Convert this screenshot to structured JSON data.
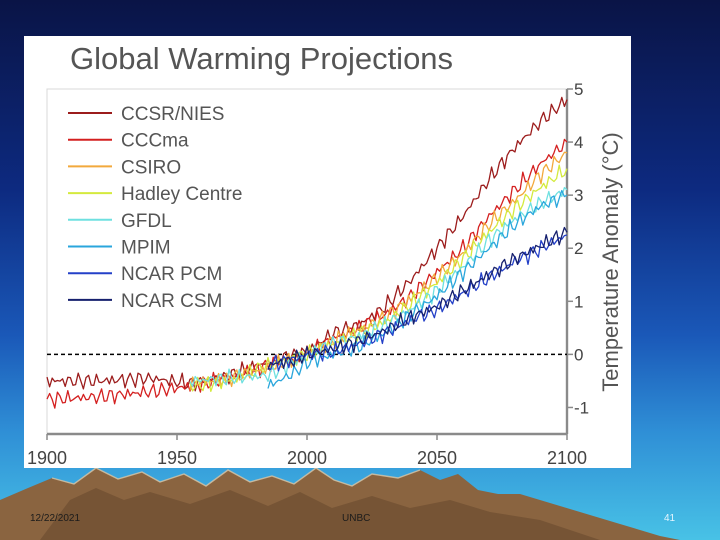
{
  "slide": {
    "date": "12/22/2021",
    "organization": "UNBC",
    "page_number": "41",
    "colors": {
      "background_top": "#0a1446",
      "background_bottom": "#48c2e6",
      "mountain": "#8a6440"
    }
  },
  "chart_data": {
    "type": "line",
    "title": "Global Warming Projections",
    "xlabel": "",
    "ylabel": "Temperature Anomaly (°C)",
    "xlim": [
      1900,
      2100
    ],
    "ylim": [
      -1.5,
      5
    ],
    "x_ticks": [
      1900,
      1950,
      2000,
      2050,
      2100
    ],
    "x_tick_labels": [
      "1900",
      "1950",
      "2000",
      "2050",
      "2100"
    ],
    "y_ticks": [
      -1,
      0,
      1,
      2,
      3,
      4,
      5
    ],
    "y_tick_labels": [
      "-1",
      "0",
      "1",
      "2",
      "3",
      "4",
      "5"
    ],
    "reference_line": {
      "y": 0,
      "style": "dashed",
      "color": "#000000"
    },
    "legend_position": "top-left",
    "series": [
      {
        "name": "CCSR/NIES",
        "color": "#9c1c1c",
        "x": [
          1900,
          1920,
          1940,
          1955,
          1970,
          1985,
          2000,
          2010,
          2020,
          2030,
          2040,
          2050,
          2060,
          2070,
          2080,
          2090,
          2100
        ],
        "values": [
          -0.5,
          -0.5,
          -0.45,
          -0.55,
          -0.4,
          -0.15,
          0.05,
          0.4,
          0.55,
          0.9,
          1.4,
          2.0,
          2.6,
          3.3,
          3.9,
          4.4,
          4.8
        ]
      },
      {
        "name": "CCCma",
        "color": "#d42020",
        "x": [
          1900,
          1920,
          1940,
          1955,
          1970,
          1985,
          2000,
          2010,
          2020,
          2030,
          2040,
          2050,
          2060,
          2070,
          2080,
          2090,
          2100
        ],
        "values": [
          -0.85,
          -0.8,
          -0.7,
          -0.6,
          -0.45,
          -0.2,
          0.0,
          0.3,
          0.5,
          0.75,
          1.1,
          1.55,
          2.0,
          2.6,
          3.1,
          3.6,
          4.0
        ]
      },
      {
        "name": "CSIRO",
        "color": "#f2a93c",
        "x": [
          1955,
          1970,
          1985,
          2000,
          2010,
          2020,
          2030,
          2040,
          2050,
          2060,
          2070,
          2080,
          2090,
          2100
        ],
        "values": [
          -0.55,
          -0.45,
          -0.25,
          0.0,
          0.25,
          0.45,
          0.7,
          1.05,
          1.45,
          1.9,
          2.45,
          2.9,
          3.4,
          3.8
        ]
      },
      {
        "name": "Hadley Centre",
        "color": "#d4ea3e",
        "x": [
          1955,
          1970,
          1985,
          2000,
          2010,
          2020,
          2030,
          2040,
          2050,
          2060,
          2070,
          2080,
          2090,
          2100
        ],
        "values": [
          -0.6,
          -0.5,
          -0.2,
          0.0,
          0.2,
          0.4,
          0.6,
          0.95,
          1.35,
          1.8,
          2.3,
          2.75,
          3.15,
          3.5
        ]
      },
      {
        "name": "GFDL",
        "color": "#6ee0e0",
        "x": [
          1955,
          1970,
          1985,
          2000,
          2010,
          2020,
          2030,
          2040,
          2050,
          2060,
          2070,
          2080,
          2090,
          2100
        ],
        "values": [
          -0.5,
          -0.45,
          -0.4,
          0.0,
          0.2,
          0.35,
          0.55,
          0.85,
          1.2,
          1.65,
          2.15,
          2.55,
          2.85,
          3.1
        ]
      },
      {
        "name": "MPIM",
        "color": "#2aa6dc",
        "x": [
          1985,
          1995,
          2000,
          2010,
          2020,
          2030,
          2040,
          2050,
          2060,
          2070,
          2080,
          2090,
          2100
        ],
        "values": [
          -0.6,
          -0.35,
          -0.15,
          0.0,
          0.15,
          0.4,
          0.75,
          1.1,
          1.55,
          2.0,
          2.45,
          2.8,
          3.0
        ]
      },
      {
        "name": "NCAR PCM",
        "color": "#2440c8",
        "x": [
          1985,
          1995,
          2000,
          2010,
          2020,
          2030,
          2040,
          2050,
          2060,
          2070,
          2080,
          2090,
          2100
        ],
        "values": [
          -0.2,
          -0.1,
          0.0,
          0.05,
          0.2,
          0.4,
          0.65,
          0.85,
          1.15,
          1.45,
          1.75,
          2.0,
          2.25
        ]
      },
      {
        "name": "NCAR CSM",
        "color": "#16206e",
        "x": [
          1985,
          1995,
          2000,
          2010,
          2020,
          2030,
          2040,
          2050,
          2060,
          2070,
          2080,
          2090,
          2100
        ],
        "values": [
          -0.2,
          -0.1,
          0.0,
          0.1,
          0.25,
          0.45,
          0.7,
          0.9,
          1.2,
          1.5,
          1.8,
          2.05,
          2.3
        ]
      }
    ]
  }
}
